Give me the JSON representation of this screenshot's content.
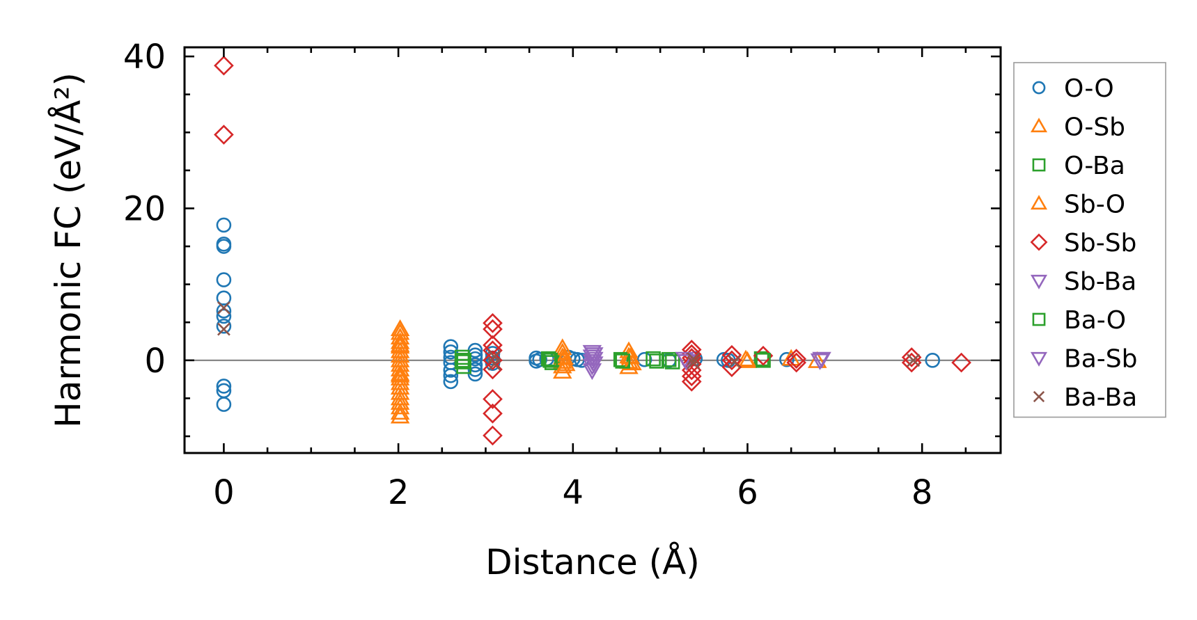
{
  "chart_data": {
    "type": "scatter",
    "title": "",
    "xlabel": "Distance (Å)",
    "ylabel": "Harmonic FC (eV/Å²)",
    "xlim": [
      -0.45,
      8.9
    ],
    "ylim": [
      -12.2,
      41.2
    ],
    "xticks": [
      0,
      2,
      4,
      6,
      8
    ],
    "yticks": [
      0,
      20,
      40
    ],
    "xtick_labels": [
      "0",
      "2",
      "4",
      "6",
      "8"
    ],
    "ytick_labels": [
      "0",
      "20",
      "40"
    ],
    "grid": false,
    "zero_line": true,
    "legend_position": "right",
    "series": [
      {
        "name": "O-O",
        "marker": "circle",
        "color": "#1f77b4",
        "points": [
          [
            0,
            17.8
          ],
          [
            0,
            15.3
          ],
          [
            0,
            15.0
          ],
          [
            0,
            10.6
          ],
          [
            0,
            8.2
          ],
          [
            0,
            6.5
          ],
          [
            0,
            5.8
          ],
          [
            0,
            4.5
          ],
          [
            0,
            -3.4
          ],
          [
            0,
            -4.0
          ],
          [
            0,
            -5.8
          ],
          [
            2.6,
            1.8
          ],
          [
            2.6,
            1.1
          ],
          [
            2.6,
            0.4
          ],
          [
            2.6,
            -0.3
          ],
          [
            2.6,
            -1.3
          ],
          [
            2.6,
            -2.0
          ],
          [
            2.6,
            -2.8
          ],
          [
            2.88,
            1.3
          ],
          [
            2.88,
            0.7
          ],
          [
            2.88,
            0.2
          ],
          [
            2.88,
            -0.6
          ],
          [
            2.88,
            -1.2
          ],
          [
            2.88,
            -1.8
          ],
          [
            3.08,
            0.9
          ],
          [
            3.08,
            0.3
          ],
          [
            3.08,
            -0.4
          ],
          [
            3.58,
            0.3
          ],
          [
            3.58,
            -0.1
          ],
          [
            3.62,
            0.1
          ],
          [
            3.7,
            0.2
          ],
          [
            3.95,
            0.4
          ],
          [
            4.0,
            0.2
          ],
          [
            4.05,
            0.1
          ],
          [
            4.1,
            0.0
          ],
          [
            4.82,
            0.1
          ],
          [
            5.1,
            0.0
          ],
          [
            5.4,
            0.2
          ],
          [
            5.73,
            0.1
          ],
          [
            5.78,
            0.0
          ],
          [
            6.45,
            0.1
          ],
          [
            8.12,
            0.0
          ]
        ]
      },
      {
        "name": "O-Sb",
        "marker": "triangle-up",
        "color": "#ff7f0e",
        "points": [
          [
            2.02,
            4.1
          ],
          [
            2.02,
            3.6
          ],
          [
            2.02,
            3.0
          ],
          [
            2.02,
            2.4
          ],
          [
            2.02,
            1.8
          ],
          [
            2.02,
            1.2
          ],
          [
            2.02,
            0.6
          ],
          [
            2.02,
            0.0
          ],
          [
            2.02,
            -0.6
          ],
          [
            2.02,
            -1.2
          ],
          [
            2.02,
            -1.8
          ],
          [
            2.02,
            -2.4
          ],
          [
            2.02,
            -3.0
          ],
          [
            2.02,
            -3.6
          ],
          [
            3.88,
            1.6
          ],
          [
            3.88,
            1.0
          ],
          [
            3.88,
            0.4
          ],
          [
            3.88,
            -0.2
          ],
          [
            3.88,
            -0.8
          ],
          [
            3.88,
            -1.5
          ],
          [
            4.64,
            1.2
          ],
          [
            4.64,
            0.5
          ],
          [
            4.64,
            -0.2
          ],
          [
            4.64,
            -0.9
          ],
          [
            5.98,
            0.1
          ],
          [
            6.5,
            0.2
          ],
          [
            6.8,
            -0.1
          ]
        ]
      },
      {
        "name": "O-Ba",
        "marker": "square",
        "color": "#2ca02c",
        "points": [
          [
            2.73,
            0.4
          ],
          [
            2.73,
            -0.2
          ],
          [
            2.75,
            -0.8
          ],
          [
            3.72,
            0.2
          ],
          [
            3.76,
            -0.3
          ],
          [
            4.55,
            0.1
          ],
          [
            4.92,
            0.2
          ],
          [
            5.1,
            0.1
          ],
          [
            6.16,
            0.2
          ]
        ]
      },
      {
        "name": "Sb-O",
        "marker": "triangle-up",
        "color": "#ff7f0e",
        "points": [
          [
            2.02,
            -4.3
          ],
          [
            2.02,
            -5.0
          ],
          [
            2.02,
            -5.6
          ],
          [
            2.02,
            -6.2
          ],
          [
            2.02,
            -6.9
          ],
          [
            2.02,
            -7.4
          ],
          [
            2.02,
            2.0
          ],
          [
            2.02,
            -2.0
          ],
          [
            3.9,
            0.3
          ],
          [
            3.92,
            -0.5
          ],
          [
            4.66,
            0.4
          ],
          [
            4.68,
            -0.4
          ],
          [
            6.0,
            -0.1
          ]
        ]
      },
      {
        "name": "Sb-Sb",
        "marker": "diamond",
        "color": "#d62728",
        "points": [
          [
            0,
            38.8
          ],
          [
            0,
            29.7
          ],
          [
            3.08,
            4.9
          ],
          [
            3.08,
            4.1
          ],
          [
            3.08,
            2.0
          ],
          [
            3.08,
            1.3
          ],
          [
            3.08,
            0.0
          ],
          [
            3.08,
            -1.2
          ],
          [
            3.08,
            -5.1
          ],
          [
            3.08,
            -7.0
          ],
          [
            3.08,
            -9.9
          ],
          [
            5.36,
            1.4
          ],
          [
            5.36,
            0.8
          ],
          [
            5.36,
            0.3
          ],
          [
            5.36,
            -0.5
          ],
          [
            5.36,
            -1.3
          ],
          [
            5.36,
            -2.1
          ],
          [
            5.36,
            -2.8
          ],
          [
            5.82,
            0.7
          ],
          [
            5.82,
            0.0
          ],
          [
            5.82,
            -0.9
          ],
          [
            6.18,
            0.6
          ],
          [
            6.56,
            0.2
          ],
          [
            6.56,
            -0.3
          ],
          [
            7.88,
            0.4
          ],
          [
            7.88,
            -0.3
          ],
          [
            8.45,
            -0.3
          ]
        ]
      },
      {
        "name": "Sb-Ba",
        "marker": "triangle-down",
        "color": "#9467bd",
        "points": [
          [
            4.22,
            1.1
          ],
          [
            4.22,
            0.5
          ],
          [
            4.22,
            -0.1
          ],
          [
            4.22,
            -0.7
          ],
          [
            4.22,
            -1.3
          ],
          [
            5.28,
            0.2
          ],
          [
            6.83,
            0.0
          ]
        ]
      },
      {
        "name": "Ba-O",
        "marker": "square",
        "color": "#2ca02c",
        "points": [
          [
            2.75,
            0.0
          ],
          [
            3.74,
            0.0
          ],
          [
            4.57,
            -0.1
          ],
          [
            4.96,
            -0.1
          ],
          [
            5.14,
            -0.2
          ],
          [
            6.18,
            0.0
          ]
        ]
      },
      {
        "name": "Ba-Sb",
        "marker": "triangle-down",
        "color": "#9467bd",
        "points": [
          [
            4.24,
            0.8
          ],
          [
            4.24,
            0.2
          ],
          [
            4.24,
            -0.4
          ],
          [
            5.3,
            -0.1
          ],
          [
            6.85,
            0.2
          ]
        ]
      },
      {
        "name": "Ba-Ba",
        "marker": "x",
        "color": "#8c564b",
        "points": [
          [
            0,
            6.9
          ],
          [
            0,
            4.1
          ],
          [
            3.1,
            0.5
          ],
          [
            3.1,
            -0.5
          ],
          [
            5.38,
            0.2
          ],
          [
            5.38,
            -0.3
          ],
          [
            5.85,
            -0.2
          ],
          [
            7.9,
            0.0
          ]
        ]
      }
    ]
  }
}
